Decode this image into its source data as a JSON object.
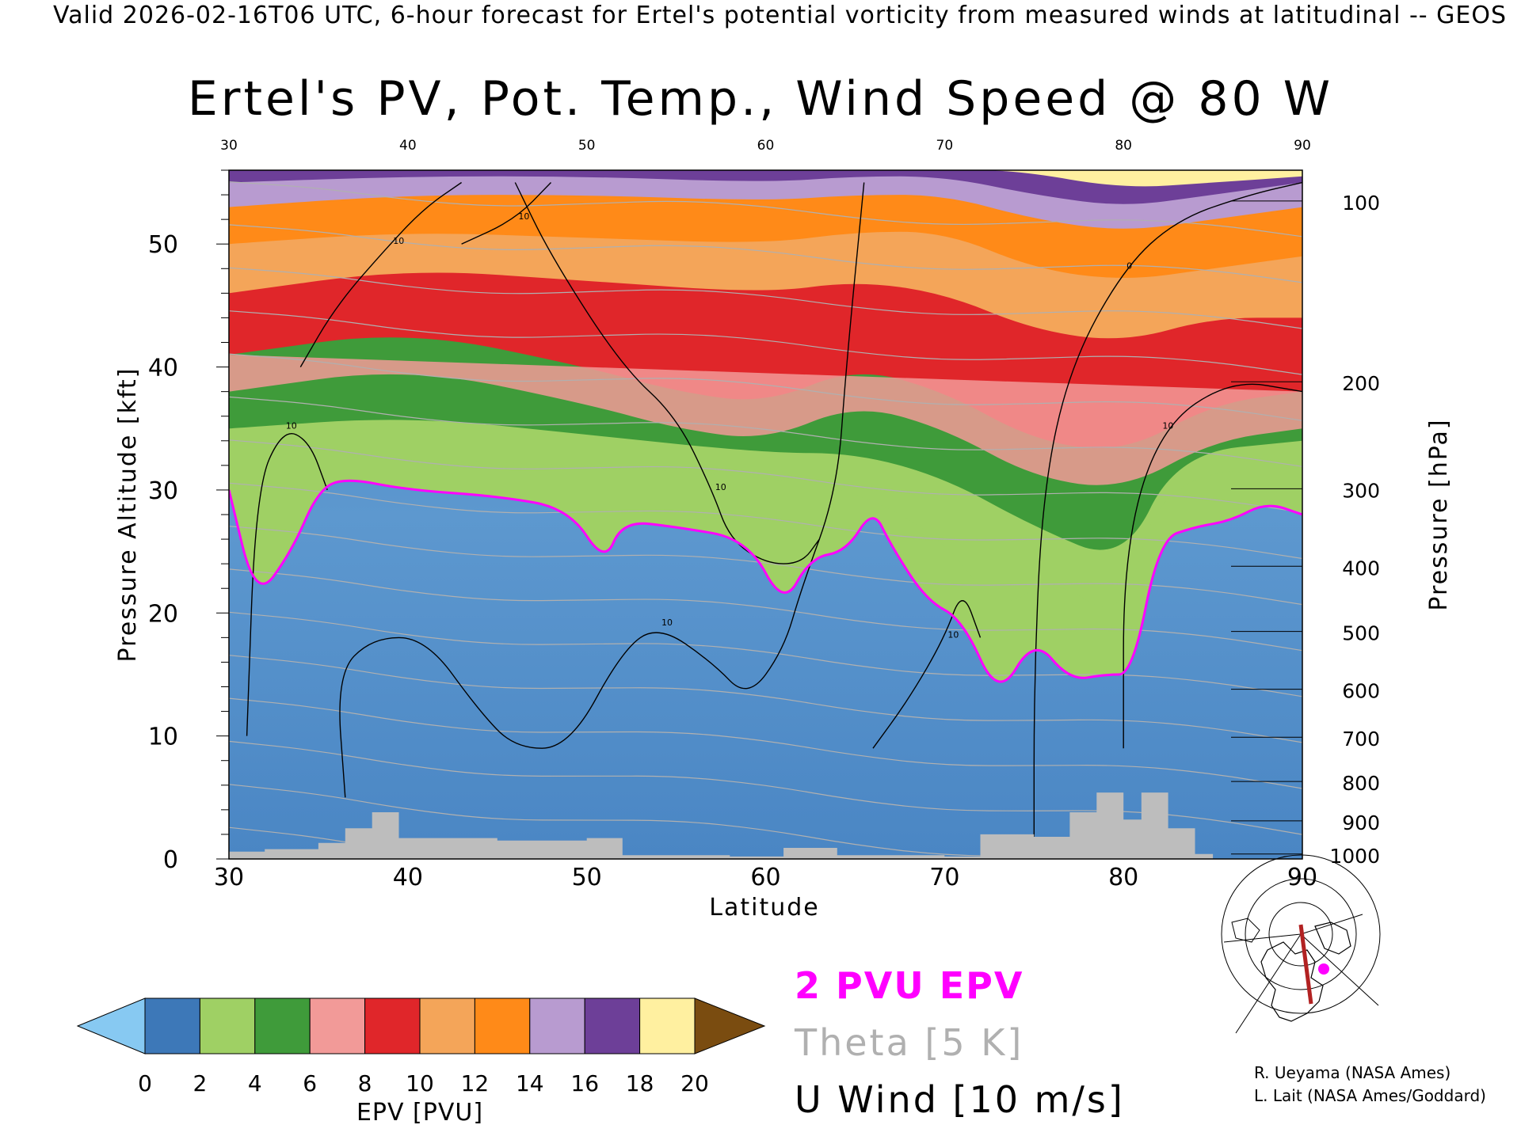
{
  "header": {
    "valid_line": "Valid 2026-02-16T06 UTC, 6-hour forecast for Ertel's potential vorticity from measured winds at latitudinal -- GEOS"
  },
  "chart_data": {
    "type": "heatmap",
    "title": "Ertel's PV, Pot. Temp., Wind Speed @ 80 W",
    "xlabel": "Latitude",
    "ylabel_left": "Pressure Altitude [kft]",
    "ylabel_right": "Pressure [hPa]",
    "xlim": [
      30,
      90
    ],
    "ylim_kft": [
      0,
      56
    ],
    "x_ticks": [
      "30",
      "40",
      "50",
      "60",
      "70",
      "80",
      "90"
    ],
    "x_ticks_top": [
      "30",
      "40",
      "50",
      "60",
      "70",
      "80",
      "90"
    ],
    "y_ticks_left": [
      "0",
      "10",
      "20",
      "30",
      "40",
      "50"
    ],
    "y_ticks_right": [
      {
        "label": "100",
        "kft": 53.5
      },
      {
        "label": "200",
        "kft": 38.8
      },
      {
        "label": "300",
        "kft": 30.1
      },
      {
        "label": "400",
        "kft": 23.8
      },
      {
        "label": "500",
        "kft": 18.5
      },
      {
        "label": "600",
        "kft": 13.8
      },
      {
        "label": "700",
        "kft": 9.9
      },
      {
        "label": "800",
        "kft": 6.3
      },
      {
        "label": "900",
        "kft": 3.1
      },
      {
        "label": "1000",
        "kft": 0.4
      }
    ],
    "tropopause_2pvu_kft": [
      {
        "lat": 30,
        "kft": 30
      },
      {
        "lat": 31.5,
        "kft": 21
      },
      {
        "lat": 33.5,
        "kft": 25
      },
      {
        "lat": 35,
        "kft": 30
      },
      {
        "lat": 36.5,
        "kft": 31
      },
      {
        "lat": 40,
        "kft": 30
      },
      {
        "lat": 45,
        "kft": 29.5
      },
      {
        "lat": 49,
        "kft": 28.5
      },
      {
        "lat": 51,
        "kft": 24
      },
      {
        "lat": 52,
        "kft": 27.5
      },
      {
        "lat": 55,
        "kft": 27
      },
      {
        "lat": 59,
        "kft": 26
      },
      {
        "lat": 61,
        "kft": 20.5
      },
      {
        "lat": 62.5,
        "kft": 24.5
      },
      {
        "lat": 64.5,
        "kft": 25
      },
      {
        "lat": 66,
        "kft": 28.5
      },
      {
        "lat": 67,
        "kft": 25.5
      },
      {
        "lat": 69,
        "kft": 21
      },
      {
        "lat": 71,
        "kft": 19.5
      },
      {
        "lat": 73,
        "kft": 13
      },
      {
        "lat": 75,
        "kft": 18
      },
      {
        "lat": 77,
        "kft": 14.5
      },
      {
        "lat": 79,
        "kft": 15
      },
      {
        "lat": 80.5,
        "kft": 15
      },
      {
        "lat": 82,
        "kft": 26
      },
      {
        "lat": 84,
        "kft": 27
      },
      {
        "lat": 86,
        "kft": 27.5
      },
      {
        "lat": 88,
        "kft": 29
      },
      {
        "lat": 90,
        "kft": 28
      }
    ],
    "pv_level_boundaries_kft": [
      {
        "pvu": 4,
        "points": [
          [
            30,
            33
          ],
          [
            40,
            32.5
          ],
          [
            50,
            32
          ],
          [
            60,
            31
          ],
          [
            65,
            30
          ],
          [
            70,
            26
          ],
          [
            73,
            20
          ],
          [
            76,
            23
          ],
          [
            80,
            19
          ],
          [
            82,
            31
          ],
          [
            90,
            32
          ]
        ]
      },
      {
        "pvu": 6,
        "points": [
          [
            30,
            35
          ],
          [
            40,
            36
          ],
          [
            50,
            34.5
          ],
          [
            60,
            33
          ],
          [
            65,
            33
          ],
          [
            70,
            31
          ],
          [
            75,
            27
          ],
          [
            80,
            24
          ],
          [
            83,
            33
          ],
          [
            90,
            34
          ]
        ]
      },
      {
        "pvu": 10,
        "points": [
          [
            30,
            41
          ],
          [
            40,
            43
          ],
          [
            50,
            40
          ],
          [
            55,
            38
          ],
          [
            60,
            37
          ],
          [
            65,
            40
          ],
          [
            70,
            38
          ],
          [
            75,
            34
          ],
          [
            80,
            33
          ],
          [
            85,
            37
          ],
          [
            90,
            38
          ]
        ]
      },
      {
        "pvu": 12,
        "points": [
          [
            30,
            46
          ],
          [
            40,
            48
          ],
          [
            50,
            47
          ],
          [
            60,
            46
          ],
          [
            65,
            47
          ],
          [
            70,
            46
          ],
          [
            75,
            43
          ],
          [
            80,
            42
          ],
          [
            85,
            44
          ],
          [
            90,
            44
          ]
        ]
      },
      {
        "pvu": 14,
        "points": [
          [
            30,
            50
          ],
          [
            40,
            51
          ],
          [
            50,
            50.5
          ],
          [
            60,
            50
          ],
          [
            65,
            51
          ],
          [
            70,
            51
          ],
          [
            75,
            48
          ],
          [
            80,
            47
          ],
          [
            85,
            48
          ],
          [
            90,
            49
          ]
        ]
      },
      {
        "pvu": 16,
        "points": [
          [
            30,
            53
          ],
          [
            40,
            54
          ],
          [
            50,
            54
          ],
          [
            60,
            53.5
          ],
          [
            65,
            54
          ],
          [
            70,
            54
          ],
          [
            75,
            52
          ],
          [
            80,
            51
          ],
          [
            85,
            52
          ],
          [
            90,
            53
          ]
        ]
      },
      {
        "pvu": 18,
        "points": [
          [
            30,
            55
          ],
          [
            40,
            55.5
          ],
          [
            50,
            55.5
          ],
          [
            60,
            55
          ],
          [
            65,
            55.5
          ],
          [
            70,
            55.5
          ],
          [
            75,
            54
          ],
          [
            80,
            53
          ],
          [
            85,
            54
          ],
          [
            90,
            55
          ]
        ]
      },
      {
        "pvu": 20,
        "points": [
          [
            70,
            56
          ],
          [
            74,
            56
          ],
          [
            80,
            54.5
          ],
          [
            85,
            55
          ],
          [
            90,
            55.5
          ]
        ]
      }
    ],
    "theta_contours_K": [
      270,
      280,
      290,
      300,
      310,
      320,
      330,
      340,
      350,
      360,
      370,
      380,
      390,
      400,
      410,
      420
    ],
    "u_wind_contours_ms": [
      {
        "label": "10",
        "points": [
          [
            31,
            10
          ],
          [
            31.5,
            30
          ],
          [
            33,
            35
          ],
          [
            34.5,
            34
          ],
          [
            35.5,
            30
          ]
        ]
      },
      {
        "label": "10",
        "points": [
          [
            36.5,
            5
          ],
          [
            36,
            15
          ],
          [
            38,
            18
          ],
          [
            41,
            18
          ],
          [
            44,
            12
          ],
          [
            46,
            9
          ],
          [
            49,
            9
          ],
          [
            52,
            17
          ],
          [
            54,
            19
          ],
          [
            57,
            16
          ],
          [
            59,
            13
          ],
          [
            61,
            17
          ],
          [
            62,
            22
          ],
          [
            64,
            30
          ],
          [
            64.5,
            40
          ],
          [
            65.5,
            55
          ]
        ]
      },
      {
        "label": "10",
        "points": [
          [
            34,
            40
          ],
          [
            36,
            45
          ],
          [
            39,
            50
          ],
          [
            41,
            53
          ],
          [
            43,
            55
          ]
        ]
      },
      {
        "label": "10",
        "points": [
          [
            43,
            50
          ],
          [
            46,
            52
          ],
          [
            48,
            55
          ]
        ]
      },
      {
        "label": "10",
        "points": [
          [
            46,
            55
          ],
          [
            48,
            49
          ],
          [
            52,
            40
          ],
          [
            55,
            36
          ],
          [
            57,
            30
          ],
          [
            58,
            26
          ],
          [
            60,
            24
          ],
          [
            62,
            24
          ],
          [
            63,
            26
          ]
        ]
      },
      {
        "label": "10",
        "points": [
          [
            66,
            9
          ],
          [
            68,
            13
          ],
          [
            70,
            18
          ],
          [
            71,
            22
          ],
          [
            72,
            18
          ]
        ]
      },
      {
        "label": "0",
        "points": [
          [
            75,
            0
          ],
          [
            75,
            15
          ],
          [
            75.5,
            30
          ],
          [
            77,
            40
          ],
          [
            80,
            48
          ],
          [
            83,
            52
          ],
          [
            87,
            54
          ],
          [
            90,
            55
          ]
        ]
      },
      {
        "label": "10",
        "points": [
          [
            80,
            9
          ],
          [
            80,
            25
          ],
          [
            82,
            35
          ],
          [
            86,
            39
          ],
          [
            90,
            38
          ]
        ]
      }
    ],
    "terrain_kft": [
      {
        "lat": 30,
        "kft": 0.6
      },
      {
        "lat": 32,
        "kft": 0.8
      },
      {
        "lat": 35,
        "kft": 1.3
      },
      {
        "lat": 36.5,
        "kft": 2.5
      },
      {
        "lat": 38,
        "kft": 3.8
      },
      {
        "lat": 39.5,
        "kft": 1.7
      },
      {
        "lat": 45,
        "kft": 1.5
      },
      {
        "lat": 50,
        "kft": 1.7
      },
      {
        "lat": 52,
        "kft": 0.3
      },
      {
        "lat": 58,
        "kft": 0.2
      },
      {
        "lat": 61,
        "kft": 0.9
      },
      {
        "lat": 64,
        "kft": 0.3
      },
      {
        "lat": 70,
        "kft": 0.2
      },
      {
        "lat": 72,
        "kft": 2.0
      },
      {
        "lat": 75,
        "kft": 1.8
      },
      {
        "lat": 77,
        "kft": 3.8
      },
      {
        "lat": 78.5,
        "kft": 5.4
      },
      {
        "lat": 80,
        "kft": 3.2
      },
      {
        "lat": 81,
        "kft": 5.4
      },
      {
        "lat": 82.5,
        "kft": 2.5
      },
      {
        "lat": 84,
        "kft": 0.4
      }
    ],
    "colorbar": {
      "label": "EPV [PVU]",
      "ticks": [
        "0",
        "2",
        "4",
        "6",
        "8",
        "10",
        "12",
        "14",
        "16",
        "18",
        "20"
      ],
      "colors": [
        "#3d78b8",
        "#9fd064",
        "#3f9b3a",
        "#f29a98",
        "#e0262a",
        "#f4a559",
        "#ff8a18",
        "#b89bd0",
        "#6d3f98",
        "#fff0a0"
      ],
      "under_color": "#87c9f2",
      "over_color": "#7a4c10"
    }
  },
  "legend": {
    "pv_line": "2 PVU EPV",
    "theta_line": "Theta [5 K]",
    "wind_line": "U Wind [10 m/s]",
    "pv_color": "#ff00ff",
    "theta_color": "#b0b0b0"
  },
  "inset_map": {
    "description_icon": "polar-map-icon",
    "transect_color": "#b22222",
    "marker_color": "#ff00ff"
  },
  "credits": {
    "line1": "R. Ueyama (NASA Ames)",
    "line2": "L. Lait (NASA Ames/Goddard)"
  }
}
